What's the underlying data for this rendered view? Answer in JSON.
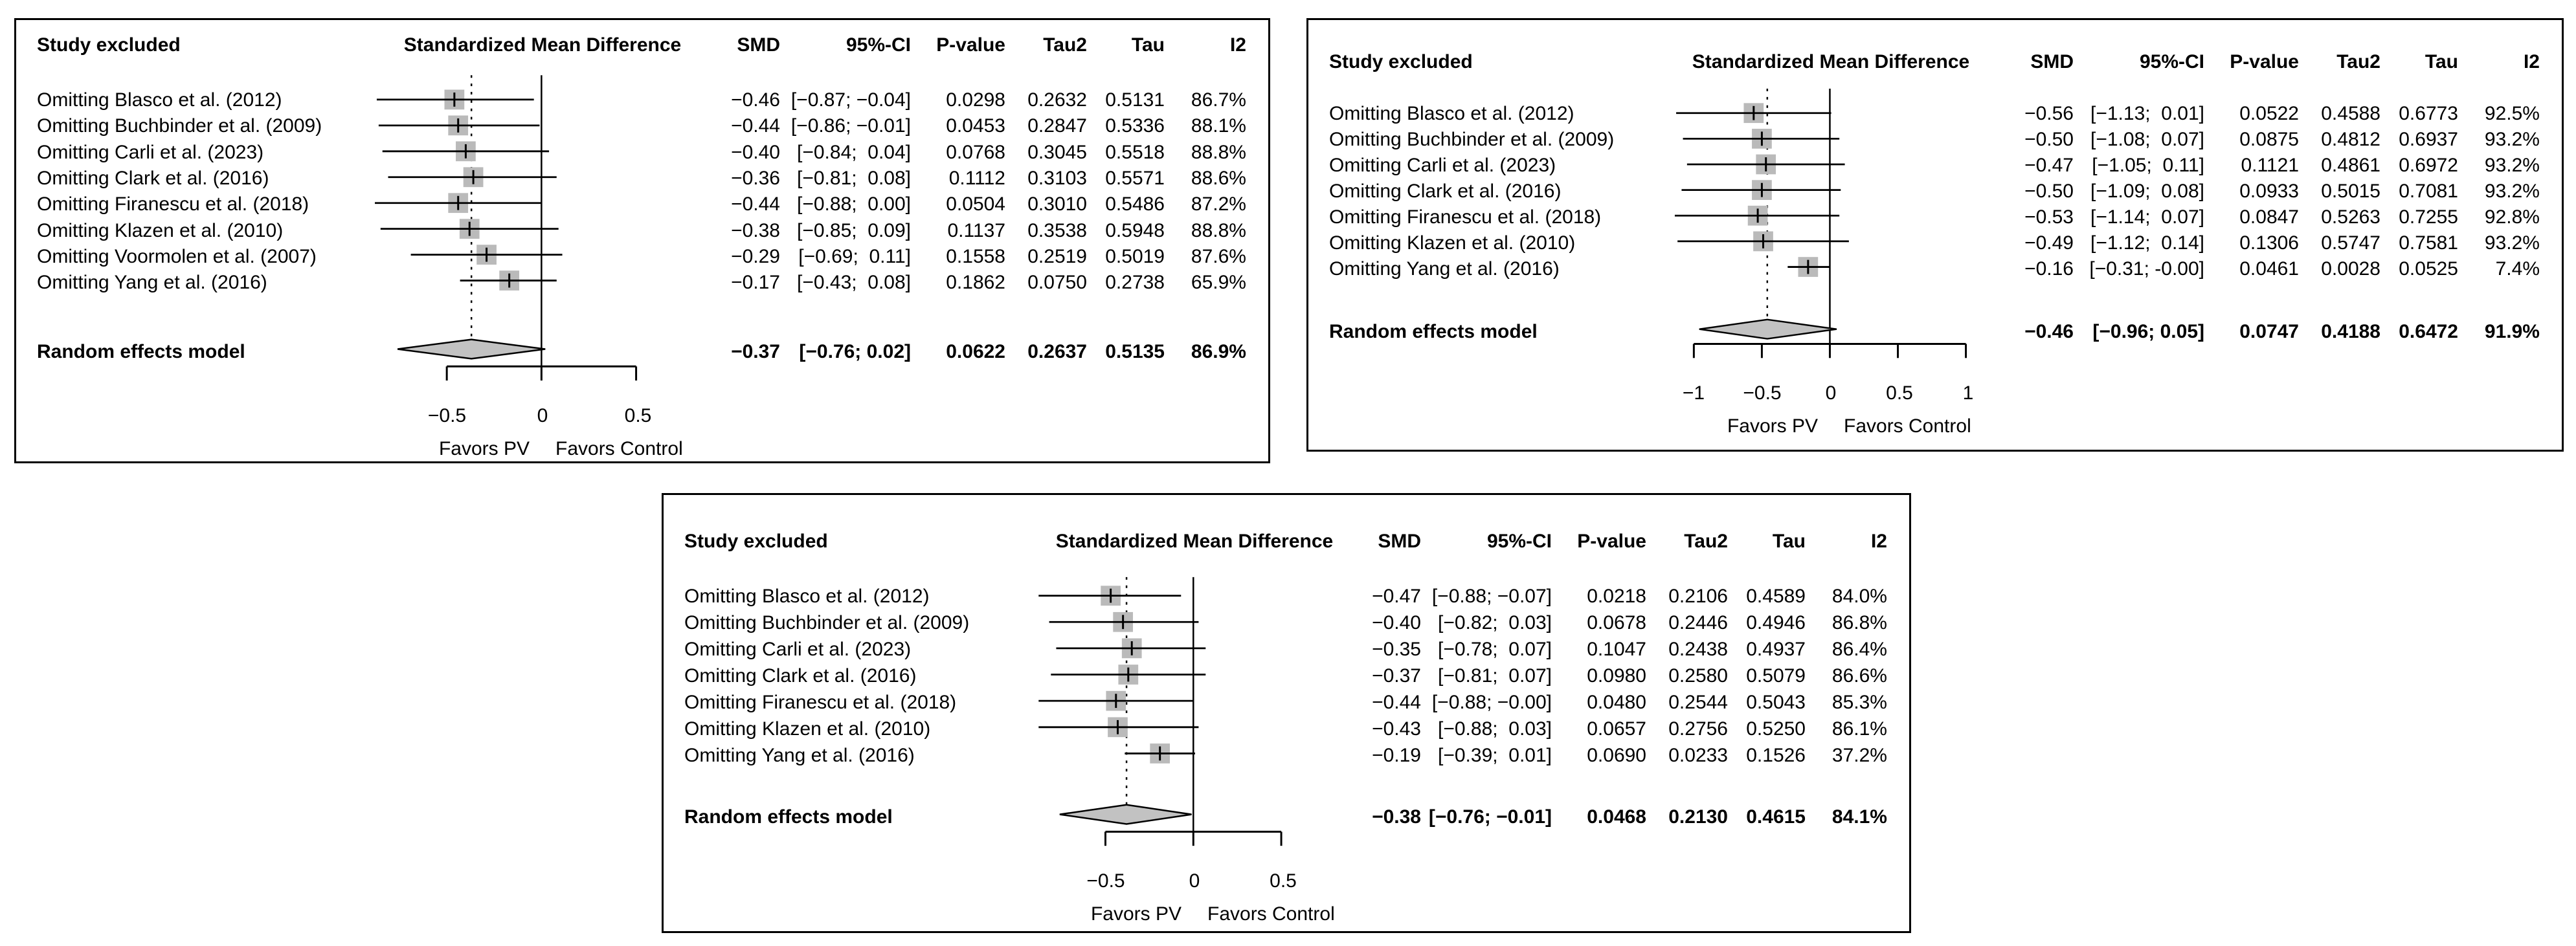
{
  "colors": {
    "line_black": "#000000",
    "marker_gray": "#bababa",
    "diamond_gray": "#c2c2c2",
    "background": "#ffffff"
  },
  "chart_data": [
    {
      "type": "forest",
      "position": "top-left",
      "columns": {
        "study_excluded": "Study excluded",
        "plot": "Standardized Mean Difference",
        "smd": "SMD",
        "ci": "95%-CI",
        "p": "P-value",
        "tau2": "Tau2",
        "tau": "Tau",
        "i2": "I2"
      },
      "studies": [
        {
          "label": "Omitting Blasco et al. (2012)",
          "smd": -0.46,
          "ci_lo": -0.87,
          "ci_hi": -0.04,
          "smd_text": "−0.46",
          "ci_text": "[−0.87; −0.04]",
          "p": "0.0298",
          "tau2": "0.2632",
          "tau": "0.5131",
          "i2": "86.7%"
        },
        {
          "label": "Omitting Buchbinder et al. (2009)",
          "smd": -0.44,
          "ci_lo": -0.86,
          "ci_hi": -0.01,
          "smd_text": "−0.44",
          "ci_text": "[−0.86; −0.01]",
          "p": "0.0453",
          "tau2": "0.2847",
          "tau": "0.5336",
          "i2": "88.1%"
        },
        {
          "label": "Omitting Carli et al. (2023)",
          "smd": -0.4,
          "ci_lo": -0.84,
          "ci_hi": 0.04,
          "smd_text": "−0.40",
          "ci_text": "[−0.84;  0.04]",
          "p": "0.0768",
          "tau2": "0.3045",
          "tau": "0.5518",
          "i2": "88.8%"
        },
        {
          "label": "Omitting Clark et al. (2016)",
          "smd": -0.36,
          "ci_lo": -0.81,
          "ci_hi": 0.08,
          "smd_text": "−0.36",
          "ci_text": "[−0.81;  0.08]",
          "p": "0.1112",
          "tau2": "0.3103",
          "tau": "0.5571",
          "i2": "88.6%"
        },
        {
          "label": "Omitting Firanescu et al. (2018)",
          "smd": -0.44,
          "ci_lo": -0.88,
          "ci_hi": 0.0,
          "smd_text": "−0.44",
          "ci_text": "[−0.88;  0.00]",
          "p": "0.0504",
          "tau2": "0.3010",
          "tau": "0.5486",
          "i2": "87.2%"
        },
        {
          "label": "Omitting Klazen et al. (2010)",
          "smd": -0.38,
          "ci_lo": -0.85,
          "ci_hi": 0.09,
          "smd_text": "−0.38",
          "ci_text": "[−0.85;  0.09]",
          "p": "0.1137",
          "tau2": "0.3538",
          "tau": "0.5948",
          "i2": "88.8%"
        },
        {
          "label": "Omitting Voormolen et al. (2007)",
          "smd": -0.29,
          "ci_lo": -0.69,
          "ci_hi": 0.11,
          "smd_text": "−0.29",
          "ci_text": "[−0.69;  0.11]",
          "p": "0.1558",
          "tau2": "0.2519",
          "tau": "0.5019",
          "i2": "87.6%"
        },
        {
          "label": "Omitting Yang et al. (2016)",
          "smd": -0.17,
          "ci_lo": -0.43,
          "ci_hi": 0.08,
          "smd_text": "−0.17",
          "ci_text": "[−0.43;  0.08]",
          "p": "0.1862",
          "tau2": "0.0750",
          "tau": "0.2738",
          "i2": "65.9%"
        }
      ],
      "summary": {
        "label": "Random effects model",
        "smd": -0.37,
        "ci_lo": -0.76,
        "ci_hi": 0.02,
        "smd_text": "−0.37",
        "ci_text": "[−0.76; 0.02]",
        "p": "0.0622",
        "tau2": "0.2637",
        "tau": "0.5135",
        "i2": "86.9%"
      },
      "axis": {
        "ticks": [
          -0.5,
          0,
          0.5
        ],
        "tick_labels": [
          "−0.5",
          "0",
          "0.5"
        ],
        "left_label": "Favors PV",
        "right_label": "Favors Control"
      }
    },
    {
      "type": "forest",
      "position": "top-right",
      "columns": {
        "study_excluded": "Study excluded",
        "plot": "Standardized Mean Difference",
        "smd": "SMD",
        "ci": "95%-CI",
        "p": "P-value",
        "tau2": "Tau2",
        "tau": "Tau",
        "i2": "I2"
      },
      "studies": [
        {
          "label": "Omitting Blasco et al. (2012)",
          "smd": -0.56,
          "ci_lo": -1.13,
          "ci_hi": 0.01,
          "smd_text": "−0.56",
          "ci_text": "[−1.13;  0.01]",
          "p": "0.0522",
          "tau2": "0.4588",
          "tau": "0.6773",
          "i2": "92.5%"
        },
        {
          "label": "Omitting Buchbinder et al. (2009)",
          "smd": -0.5,
          "ci_lo": -1.08,
          "ci_hi": 0.07,
          "smd_text": "−0.50",
          "ci_text": "[−1.08;  0.07]",
          "p": "0.0875",
          "tau2": "0.4812",
          "tau": "0.6937",
          "i2": "93.2%"
        },
        {
          "label": "Omitting Carli et al. (2023)",
          "smd": -0.47,
          "ci_lo": -1.05,
          "ci_hi": 0.11,
          "smd_text": "−0.47",
          "ci_text": "[−1.05;  0.11]",
          "p": "0.1121",
          "tau2": "0.4861",
          "tau": "0.6972",
          "i2": "93.2%"
        },
        {
          "label": "Omitting Clark et al. (2016)",
          "smd": -0.5,
          "ci_lo": -1.09,
          "ci_hi": 0.08,
          "smd_text": "−0.50",
          "ci_text": "[−1.09;  0.08]",
          "p": "0.0933",
          "tau2": "0.5015",
          "tau": "0.7081",
          "i2": "93.2%"
        },
        {
          "label": "Omitting Firanescu et al. (2018)",
          "smd": -0.53,
          "ci_lo": -1.14,
          "ci_hi": 0.07,
          "smd_text": "−0.53",
          "ci_text": "[−1.14;  0.07]",
          "p": "0.0847",
          "tau2": "0.5263",
          "tau": "0.7255",
          "i2": "92.8%"
        },
        {
          "label": "Omitting Klazen et al. (2010)",
          "smd": -0.49,
          "ci_lo": -1.12,
          "ci_hi": 0.14,
          "smd_text": "−0.49",
          "ci_text": "[−1.12;  0.14]",
          "p": "0.1306",
          "tau2": "0.5747",
          "tau": "0.7581",
          "i2": "93.2%"
        },
        {
          "label": "Omitting Yang et al. (2016)",
          "smd": -0.16,
          "ci_lo": -0.31,
          "ci_hi": 0.0,
          "smd_text": "−0.16",
          "ci_text": "[−0.31; -0.00]",
          "p": "0.0461",
          "tau2": "0.0028",
          "tau": "0.0525",
          "i2": "7.4%"
        }
      ],
      "summary": {
        "label": "Random effects model",
        "smd": -0.46,
        "ci_lo": -0.96,
        "ci_hi": 0.05,
        "smd_text": "−0.46",
        "ci_text": "[−0.96; 0.05]",
        "p": "0.0747",
        "tau2": "0.4188",
        "tau": "0.6472",
        "i2": "91.9%"
      },
      "axis": {
        "ticks": [
          -1,
          -0.5,
          0,
          0.5,
          1
        ],
        "tick_labels": [
          "−1",
          "−0.5",
          "0",
          "0.5",
          "1"
        ],
        "left_label": "Favors PV",
        "right_label": "Favors Control"
      }
    },
    {
      "type": "forest",
      "position": "bottom-center",
      "columns": {
        "study_excluded": "Study excluded",
        "plot": "Standardized Mean Difference",
        "smd": "SMD",
        "ci": "95%-CI",
        "p": "P-value",
        "tau2": "Tau2",
        "tau": "Tau",
        "i2": "I2"
      },
      "studies": [
        {
          "label": "Omitting Blasco et al. (2012)",
          "smd": -0.47,
          "ci_lo": -0.88,
          "ci_hi": -0.07,
          "smd_text": "−0.47",
          "ci_text": "[−0.88; −0.07]",
          "p": "0.0218",
          "tau2": "0.2106",
          "tau": "0.4589",
          "i2": "84.0%"
        },
        {
          "label": "Omitting Buchbinder et al. (2009)",
          "smd": -0.4,
          "ci_lo": -0.82,
          "ci_hi": 0.03,
          "smd_text": "−0.40",
          "ci_text": "[−0.82;  0.03]",
          "p": "0.0678",
          "tau2": "0.2446",
          "tau": "0.4946",
          "i2": "86.8%"
        },
        {
          "label": "Omitting Carli et al. (2023)",
          "smd": -0.35,
          "ci_lo": -0.78,
          "ci_hi": 0.07,
          "smd_text": "−0.35",
          "ci_text": "[−0.78;  0.07]",
          "p": "0.1047",
          "tau2": "0.2438",
          "tau": "0.4937",
          "i2": "86.4%"
        },
        {
          "label": "Omitting Clark et al. (2016)",
          "smd": -0.37,
          "ci_lo": -0.81,
          "ci_hi": 0.07,
          "smd_text": "−0.37",
          "ci_text": "[−0.81;  0.07]",
          "p": "0.0980",
          "tau2": "0.2580",
          "tau": "0.5079",
          "i2": "86.6%"
        },
        {
          "label": "Omitting Firanescu et al. (2018)",
          "smd": -0.44,
          "ci_lo": -0.88,
          "ci_hi": 0.0,
          "smd_text": "−0.44",
          "ci_text": "[−0.88; −0.00]",
          "p": "0.0480",
          "tau2": "0.2544",
          "tau": "0.5043",
          "i2": "85.3%"
        },
        {
          "label": "Omitting Klazen et al. (2010)",
          "smd": -0.43,
          "ci_lo": -0.88,
          "ci_hi": 0.03,
          "smd_text": "−0.43",
          "ci_text": "[−0.88;  0.03]",
          "p": "0.0657",
          "tau2": "0.2756",
          "tau": "0.5250",
          "i2": "86.1%"
        },
        {
          "label": "Omitting Yang et al. (2016)",
          "smd": -0.19,
          "ci_lo": -0.39,
          "ci_hi": 0.01,
          "smd_text": "−0.19",
          "ci_text": "[−0.39;  0.01]",
          "p": "0.0690",
          "tau2": "0.0233",
          "tau": "0.1526",
          "i2": "37.2%"
        }
      ],
      "summary": {
        "label": "Random effects model",
        "smd": -0.38,
        "ci_lo": -0.76,
        "ci_hi": -0.01,
        "smd_text": "−0.38",
        "ci_text": "[−0.76; −0.01]",
        "p": "0.0468",
        "tau2": "0.2130",
        "tau": "0.4615",
        "i2": "84.1%"
      },
      "axis": {
        "ticks": [
          -0.5,
          0,
          0.5
        ],
        "tick_labels": [
          "−0.5",
          "0",
          "0.5"
        ],
        "left_label": "Favors PV",
        "right_label": "Favors Control"
      }
    }
  ]
}
